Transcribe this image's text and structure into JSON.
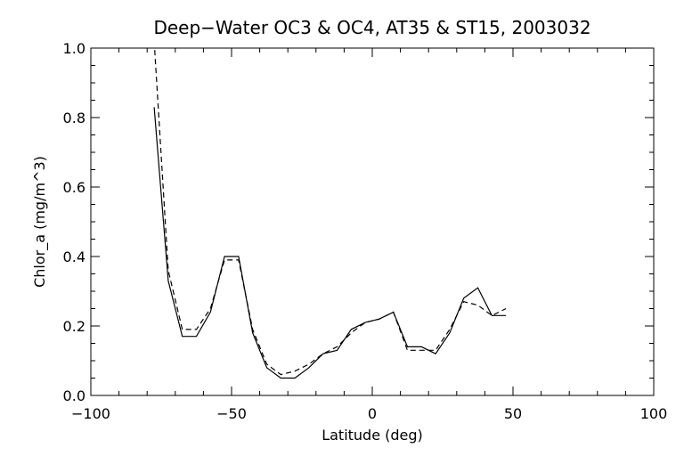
{
  "chart_data": {
    "type": "line",
    "title": "Deep−Water OC3 & OC4, AT35 & ST15, 2003032",
    "xlabel": "Latitude (deg)",
    "ylabel": "Chlor_a (mg/m^3)",
    "xlim": [
      -100,
      100
    ],
    "ylim": [
      0.0,
      1.0
    ],
    "xticks": [
      -100,
      -50,
      0,
      50,
      100
    ],
    "xtick_labels": [
      "−100",
      "−50",
      "0",
      "50",
      "100"
    ],
    "yticks": [
      0.0,
      0.2,
      0.4,
      0.6,
      0.8,
      1.0
    ],
    "ytick_labels": [
      "0.0",
      "0.2",
      "0.4",
      "0.6",
      "0.8",
      "1.0"
    ],
    "grid": false,
    "legend": "none",
    "series": [
      {
        "style": "solid",
        "color": "#000000",
        "x": [
          -77.5,
          -72.5,
          -67.5,
          -62.5,
          -57.5,
          -52.5,
          -47.5,
          -42.5,
          -37.5,
          -32.5,
          -27.5,
          -22.5,
          -17.5,
          -12.5,
          -7.5,
          -2.5,
          2.5,
          7.5,
          12.5,
          17.5,
          22.5,
          27.5,
          32.5,
          37.5,
          42.5,
          47.5
        ],
        "y": [
          0.83,
          0.33,
          0.17,
          0.17,
          0.24,
          0.4,
          0.4,
          0.18,
          0.08,
          0.05,
          0.05,
          0.08,
          0.12,
          0.13,
          0.19,
          0.21,
          0.22,
          0.24,
          0.14,
          0.14,
          0.12,
          0.18,
          0.28,
          0.31,
          0.23,
          0.23
        ]
      },
      {
        "style": "dashed",
        "color": "#000000",
        "x": [
          -77.5,
          -72.5,
          -67.5,
          -62.5,
          -57.5,
          -52.5,
          -47.5,
          -42.5,
          -37.5,
          -32.5,
          -27.5,
          -22.5,
          -17.5,
          -12.5,
          -7.5,
          -2.5,
          2.5,
          7.5,
          12.5,
          17.5,
          22.5,
          27.5,
          32.5,
          37.5,
          42.5,
          47.5
        ],
        "y": [
          1.02,
          0.36,
          0.19,
          0.19,
          0.25,
          0.39,
          0.39,
          0.19,
          0.09,
          0.06,
          0.07,
          0.09,
          0.12,
          0.14,
          0.18,
          0.21,
          0.22,
          0.24,
          0.13,
          0.13,
          0.13,
          0.19,
          0.27,
          0.26,
          0.23,
          0.25
        ]
      }
    ]
  }
}
